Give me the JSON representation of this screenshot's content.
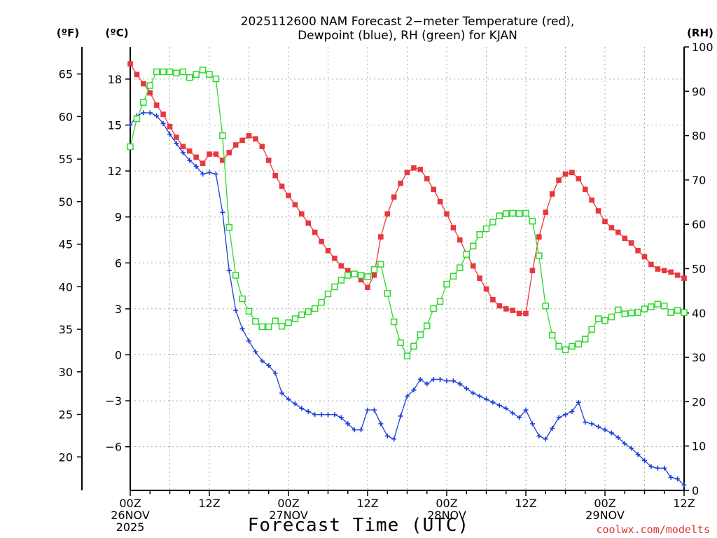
{
  "chart_data": {
    "type": "line",
    "title_line1": "2025112600 NAM Forecast 2−meter Temperature (red),",
    "title_line2": "Dewpoint (blue), RH (green) for KJAN",
    "xlabel": "Forecast Time (UTC)",
    "credit": "coolwx.com/modelts",
    "unit_f": "(ºF)",
    "unit_c": "(ºC)",
    "unit_rh": "(RH)",
    "x_ticks": [
      {
        "hour": 0,
        "labels": [
          "00Z",
          "26NOV",
          "2025"
        ]
      },
      {
        "hour": 12,
        "labels": [
          "12Z"
        ]
      },
      {
        "hour": 24,
        "labels": [
          "00Z",
          "27NOV"
        ]
      },
      {
        "hour": 36,
        "labels": [
          "12Z"
        ]
      },
      {
        "hour": 48,
        "labels": [
          "00Z",
          "28NOV"
        ]
      },
      {
        "hour": 60,
        "labels": [
          "12Z"
        ]
      },
      {
        "hour": 72,
        "labels": [
          "00Z",
          "29NOV"
        ]
      },
      {
        "hour": 84,
        "labels": [
          "12Z"
        ]
      }
    ],
    "xlim": [
      0,
      84
    ],
    "y_celsius": {
      "ticks": [
        -6,
        -3,
        0,
        3,
        6,
        9,
        12,
        15,
        18
      ],
      "range": [
        -8.85,
        20.1
      ]
    },
    "y_fahrenheit": {
      "ticks": [
        20,
        25,
        30,
        35,
        40,
        45,
        50,
        55,
        60,
        65
      ]
    },
    "y_rh": {
      "ticks": [
        0,
        10,
        20,
        30,
        40,
        50,
        60,
        70,
        80,
        90,
        100
      ],
      "range": [
        0,
        100
      ]
    },
    "grid": true,
    "series": [
      {
        "key": "temperature",
        "unit": "C",
        "color": "#e8383d",
        "marker": "filled-square",
        "values": [
          19.0,
          18.3,
          17.7,
          17.1,
          16.3,
          15.7,
          14.9,
          14.2,
          13.6,
          13.3,
          12.9,
          12.5,
          13.1,
          13.1,
          12.7,
          13.2,
          13.7,
          14.0,
          14.3,
          14.1,
          13.6,
          12.7,
          11.7,
          11.0,
          10.4,
          9.8,
          9.2,
          8.6,
          8.0,
          7.4,
          6.8,
          6.3,
          5.8,
          5.5,
          5.3,
          4.9,
          4.4,
          5.2,
          7.7,
          9.2,
          10.3,
          11.2,
          11.9,
          12.2,
          12.1,
          11.5,
          10.8,
          10.0,
          9.2,
          8.3,
          7.5,
          6.6,
          5.8,
          5.0,
          4.3,
          3.6,
          3.2,
          3.0,
          2.9,
          2.7,
          2.7,
          5.5,
          7.7,
          9.3,
          10.5,
          11.4,
          11.8,
          11.9,
          11.5,
          10.8,
          10.1,
          9.4,
          8.7,
          8.3,
          8.0,
          7.6,
          7.3,
          6.8,
          6.4,
          5.9,
          5.6,
          5.5,
          5.4,
          5.2,
          5.0
        ]
      },
      {
        "key": "dewpoint",
        "unit": "C",
        "color": "#1f3fd8",
        "marker": "plus",
        "values": [
          15.0,
          15.6,
          15.8,
          15.8,
          15.6,
          15.1,
          14.4,
          13.8,
          13.2,
          12.7,
          12.3,
          11.8,
          11.9,
          11.8,
          9.3,
          5.5,
          2.9,
          1.7,
          0.9,
          0.2,
          -0.4,
          -0.7,
          -1.2,
          -2.5,
          -2.9,
          -3.2,
          -3.5,
          -3.7,
          -3.9,
          -3.9,
          -3.9,
          -3.9,
          -4.1,
          -4.5,
          -4.9,
          -4.9,
          -3.6,
          -3.6,
          -4.5,
          -5.3,
          -5.5,
          -4.0,
          -2.7,
          -2.3,
          -1.6,
          -1.9,
          -1.6,
          -1.6,
          -1.7,
          -1.7,
          -1.9,
          -2.2,
          -2.5,
          -2.7,
          -2.9,
          -3.1,
          -3.3,
          -3.5,
          -3.8,
          -4.1,
          -3.6,
          -4.5,
          -5.3,
          -5.5,
          -4.8,
          -4.1,
          -3.9,
          -3.7,
          -3.1,
          -4.4,
          -4.5,
          -4.7,
          -4.9,
          -5.1,
          -5.4,
          -5.8,
          -6.1,
          -6.5,
          -6.9,
          -7.3,
          -7.4,
          -7.4,
          -8.0,
          -8.1,
          -8.5
        ]
      },
      {
        "key": "rh",
        "unit": "%",
        "color": "#2ed82e",
        "marker": "open-square",
        "values": [
          77.5,
          83.8,
          87.5,
          91.3,
          94.4,
          94.4,
          94.4,
          94.1,
          94.4,
          93.1,
          93.8,
          94.8,
          93.8,
          92.8,
          80.0,
          59.3,
          48.5,
          43.2,
          40.4,
          38.1,
          36.9,
          36.9,
          38.2,
          37.0,
          37.8,
          38.7,
          39.6,
          40.3,
          41.0,
          42.4,
          44.3,
          45.9,
          47.4,
          48.5,
          48.8,
          48.5,
          48.2,
          49.8,
          51.0,
          44.4,
          38.0,
          33.3,
          30.3,
          32.5,
          35.1,
          37.1,
          41.0,
          42.6,
          46.5,
          48.3,
          50.2,
          53.2,
          55.1,
          57.7,
          59.0,
          60.5,
          61.9,
          62.4,
          62.5,
          62.4,
          62.5,
          60.7,
          52.9,
          41.6,
          35.0,
          32.5,
          31.7,
          32.5,
          33.0,
          34.1,
          36.3,
          38.7,
          38.3,
          39.1,
          40.7,
          39.8,
          40.0,
          40.1,
          40.9,
          41.4,
          42.0,
          41.6,
          40.1,
          40.6,
          40.1
        ]
      }
    ]
  }
}
